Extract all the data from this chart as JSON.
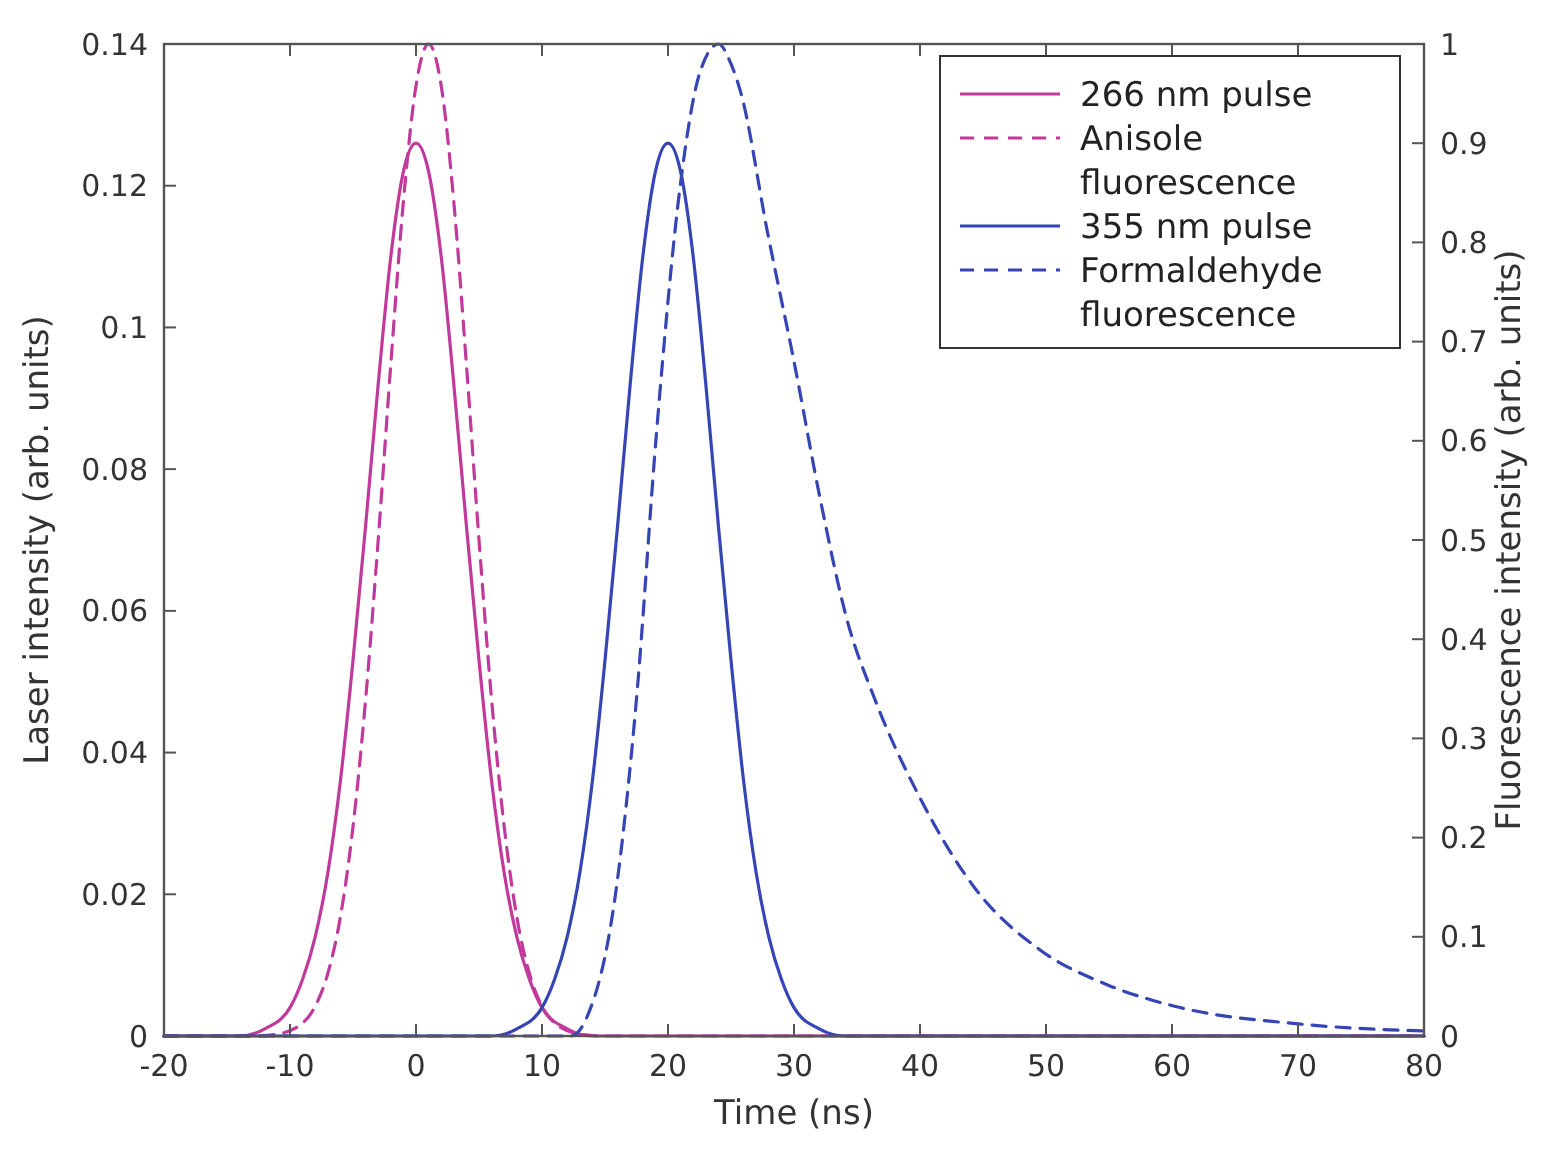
{
  "chart_data": {
    "type": "line",
    "xlabel": "Time (ns)",
    "ylabel": "Laser intensity (arb. units)",
    "y2label": "Fluorescence intensity (arb. units)",
    "xlim": [
      -20,
      80
    ],
    "xticks": [
      -20,
      -10,
      0,
      10,
      20,
      30,
      40,
      50,
      60,
      70,
      80
    ],
    "ylim": [
      0,
      0.14
    ],
    "yticks": [
      0,
      0.02,
      0.04,
      0.06,
      0.08,
      0.1,
      0.12,
      0.14
    ],
    "y2lim": [
      0,
      1
    ],
    "y2ticks": [
      0,
      0.1,
      0.2,
      0.3,
      0.4,
      0.5,
      0.6,
      0.7,
      0.8,
      0.9,
      1
    ],
    "grid": false,
    "legend": "top right",
    "series": [
      {
        "name": "266 nm pulse",
        "color": "#c0399b",
        "line_style": "solid",
        "x": [
          -20,
          -14,
          -12,
          -10,
          -9,
          -8,
          -7,
          -6,
          -5,
          -4,
          -3,
          -2,
          -1,
          0,
          1,
          2,
          3,
          4,
          5,
          6,
          7,
          8,
          9,
          10,
          12,
          14,
          80
        ],
        "values": [
          0,
          0,
          0.001,
          0.004,
          0.008,
          0.014,
          0.023,
          0.036,
          0.053,
          0.072,
          0.092,
          0.11,
          0.122,
          0.126,
          0.122,
          0.11,
          0.092,
          0.072,
          0.053,
          0.036,
          0.023,
          0.014,
          0.008,
          0.004,
          0.001,
          0,
          0
        ]
      },
      {
        "name": "Anisole fluorescence",
        "color": "#c0399b",
        "line_style": "dashed",
        "axis": "y2",
        "x": [
          -20,
          -13,
          -11,
          -9,
          -8,
          -7,
          -6,
          -5,
          -4,
          -3,
          -2,
          -1,
          0,
          1,
          2,
          3,
          4,
          5,
          6,
          7,
          8,
          9,
          10,
          11,
          13,
          15,
          80
        ],
        "values": [
          0,
          0,
          0.002,
          0.013,
          0.03,
          0.063,
          0.12,
          0.211,
          0.339,
          0.5,
          0.677,
          0.841,
          0.958,
          1,
          0.958,
          0.841,
          0.677,
          0.5,
          0.339,
          0.211,
          0.12,
          0.063,
          0.03,
          0.013,
          0.002,
          0,
          0
        ]
      },
      {
        "name": "355 nm pulse",
        "color": "#3545b5",
        "line_style": "solid",
        "x": [
          -20,
          6,
          8,
          10,
          11,
          12,
          13,
          14,
          15,
          16,
          17,
          18,
          19,
          20,
          21,
          22,
          23,
          24,
          25,
          26,
          27,
          28,
          29,
          30,
          32,
          34,
          80
        ],
        "values": [
          0,
          0,
          0.001,
          0.004,
          0.008,
          0.014,
          0.023,
          0.036,
          0.053,
          0.072,
          0.092,
          0.11,
          0.122,
          0.126,
          0.122,
          0.11,
          0.092,
          0.072,
          0.053,
          0.036,
          0.023,
          0.014,
          0.008,
          0.004,
          0.001,
          0,
          0
        ]
      },
      {
        "name": "Formaldehyde fluorescence",
        "color": "#3545b5",
        "line_style": "dashed",
        "axis": "y2",
        "x": [
          -20,
          10,
          12.3,
          13.6,
          15.8,
          17.5,
          19.1,
          21,
          22.5,
          24,
          25,
          25.8,
          27.9,
          30,
          32.1,
          34.2,
          36.4,
          40,
          44.3,
          49.5,
          54.8,
          60.2,
          70.2,
          80
        ],
        "values": [
          0,
          0,
          0,
          0.02,
          0.14,
          0.34,
          0.61,
          0.86,
          0.97,
          1,
          0.98,
          0.95,
          0.81,
          0.68,
          0.54,
          0.42,
          0.34,
          0.24,
          0.15,
          0.087,
          0.052,
          0.03,
          0.012,
          0.005
        ]
      }
    ]
  }
}
